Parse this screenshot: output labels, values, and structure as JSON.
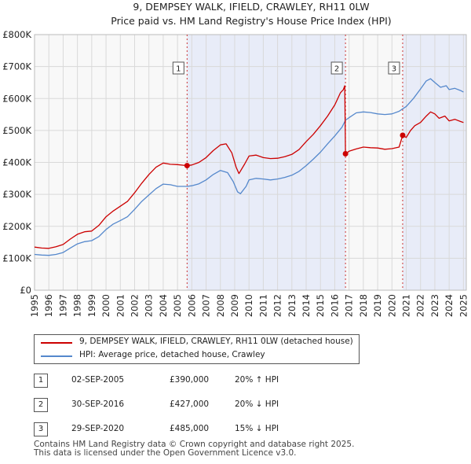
{
  "chart_data": {
    "type": "line",
    "title": "9, DEMPSEY WALK, IFIELD, CRAWLEY, RH11 0LW",
    "subtitle": "Price paid vs. HM Land Registry's House Price Index (HPI)",
    "xlim": [
      1995,
      2025.2
    ],
    "ylim": [
      0,
      800000
    ],
    "y_ticks": [
      {
        "value": 0,
        "label": "£0"
      },
      {
        "value": 100000,
        "label": "£100K"
      },
      {
        "value": 200000,
        "label": "£200K"
      },
      {
        "value": 300000,
        "label": "£300K"
      },
      {
        "value": 400000,
        "label": "£400K"
      },
      {
        "value": 500000,
        "label": "£500K"
      },
      {
        "value": 600000,
        "label": "£600K"
      },
      {
        "value": 700000,
        "label": "£700K"
      },
      {
        "value": 800000,
        "label": "£800K"
      }
    ],
    "x_ticks": [
      "1995",
      "1996",
      "1997",
      "1998",
      "1999",
      "2000",
      "2001",
      "2002",
      "2003",
      "2004",
      "2005",
      "2006",
      "2007",
      "2008",
      "2009",
      "2010",
      "2011",
      "2012",
      "2013",
      "2014",
      "2015",
      "2016",
      "2017",
      "2018",
      "2019",
      "2020",
      "2021",
      "2022",
      "2023",
      "2024",
      "2025"
    ],
    "shaded_ranges": [
      [
        2005.67,
        2016.75
      ],
      [
        2020.75,
        2025.2
      ]
    ],
    "sale_markers": [
      {
        "label": "1",
        "x": 2005.67,
        "y": 390000
      },
      {
        "label": "2",
        "x": 2016.75,
        "y": 427000
      },
      {
        "label": "3",
        "x": 2020.75,
        "y": 485000
      }
    ],
    "series": [
      {
        "name": "9, DEMPSEY WALK, IFIELD, CRAWLEY, RH11 0LW (detached house)",
        "color": "#cc0000",
        "points": [
          [
            1995,
            135000
          ],
          [
            1995.5,
            132000
          ],
          [
            1996,
            131000
          ],
          [
            1996.5,
            136000
          ],
          [
            1997,
            143000
          ],
          [
            1997.5,
            160000
          ],
          [
            1998,
            175000
          ],
          [
            1998.5,
            183000
          ],
          [
            1999,
            185000
          ],
          [
            1999.5,
            203000
          ],
          [
            2000,
            230000
          ],
          [
            2000.5,
            248000
          ],
          [
            2001,
            263000
          ],
          [
            2001.5,
            278000
          ],
          [
            2002,
            305000
          ],
          [
            2002.5,
            335000
          ],
          [
            2003,
            362000
          ],
          [
            2003.5,
            385000
          ],
          [
            2004,
            398000
          ],
          [
            2004.5,
            394000
          ],
          [
            2005,
            393000
          ],
          [
            2005.67,
            390000
          ],
          [
            2006,
            392000
          ],
          [
            2006.5,
            400000
          ],
          [
            2007,
            415000
          ],
          [
            2007.5,
            437000
          ],
          [
            2008,
            455000
          ],
          [
            2008.4,
            458000
          ],
          [
            2008.8,
            430000
          ],
          [
            2009.1,
            385000
          ],
          [
            2009.3,
            365000
          ],
          [
            2009.7,
            395000
          ],
          [
            2010,
            420000
          ],
          [
            2010.5,
            423000
          ],
          [
            2011,
            415000
          ],
          [
            2011.5,
            412000
          ],
          [
            2012,
            413000
          ],
          [
            2012.5,
            418000
          ],
          [
            2013,
            425000
          ],
          [
            2013.5,
            440000
          ],
          [
            2014,
            465000
          ],
          [
            2014.5,
            488000
          ],
          [
            2015,
            515000
          ],
          [
            2015.5,
            545000
          ],
          [
            2016,
            580000
          ],
          [
            2016.4,
            618000
          ],
          [
            2016.6,
            628000
          ],
          [
            2016.7,
            640000
          ],
          [
            2016.75,
            427000
          ],
          [
            2017,
            435000
          ],
          [
            2017.5,
            442000
          ],
          [
            2018,
            448000
          ],
          [
            2018.5,
            446000
          ],
          [
            2019,
            445000
          ],
          [
            2019.5,
            441000
          ],
          [
            2020,
            443000
          ],
          [
            2020.5,
            448000
          ],
          [
            2020.75,
            485000
          ],
          [
            2021,
            478000
          ],
          [
            2021.3,
            500000
          ],
          [
            2021.6,
            515000
          ],
          [
            2022,
            525000
          ],
          [
            2022.4,
            545000
          ],
          [
            2022.7,
            558000
          ],
          [
            2023,
            552000
          ],
          [
            2023.3,
            538000
          ],
          [
            2023.7,
            545000
          ],
          [
            2024,
            530000
          ],
          [
            2024.4,
            535000
          ],
          [
            2024.8,
            528000
          ],
          [
            2025,
            525000
          ]
        ]
      },
      {
        "name": "HPI: Average price, detached house, Crawley",
        "color": "#5588cc",
        "points": [
          [
            1995,
            112000
          ],
          [
            1995.5,
            110000
          ],
          [
            1996,
            109000
          ],
          [
            1996.5,
            112000
          ],
          [
            1997,
            118000
          ],
          [
            1997.5,
            132000
          ],
          [
            1998,
            145000
          ],
          [
            1998.5,
            152000
          ],
          [
            1999,
            155000
          ],
          [
            1999.5,
            168000
          ],
          [
            2000,
            190000
          ],
          [
            2000.5,
            207000
          ],
          [
            2001,
            218000
          ],
          [
            2001.5,
            230000
          ],
          [
            2002,
            253000
          ],
          [
            2002.5,
            278000
          ],
          [
            2003,
            298000
          ],
          [
            2003.5,
            318000
          ],
          [
            2004,
            332000
          ],
          [
            2004.5,
            330000
          ],
          [
            2005,
            325000
          ],
          [
            2005.67,
            325000
          ],
          [
            2006,
            327000
          ],
          [
            2006.5,
            333000
          ],
          [
            2007,
            345000
          ],
          [
            2007.5,
            362000
          ],
          [
            2008,
            375000
          ],
          [
            2008.5,
            368000
          ],
          [
            2008.9,
            340000
          ],
          [
            2009.2,
            308000
          ],
          [
            2009.4,
            302000
          ],
          [
            2009.8,
            325000
          ],
          [
            2010,
            345000
          ],
          [
            2010.5,
            350000
          ],
          [
            2011,
            348000
          ],
          [
            2011.5,
            345000
          ],
          [
            2012,
            348000
          ],
          [
            2012.5,
            353000
          ],
          [
            2013,
            360000
          ],
          [
            2013.5,
            372000
          ],
          [
            2014,
            390000
          ],
          [
            2014.5,
            410000
          ],
          [
            2015,
            432000
          ],
          [
            2015.5,
            458000
          ],
          [
            2016,
            483000
          ],
          [
            2016.5,
            510000
          ],
          [
            2016.75,
            532000
          ],
          [
            2017,
            540000
          ],
          [
            2017.5,
            555000
          ],
          [
            2018,
            558000
          ],
          [
            2018.5,
            556000
          ],
          [
            2019,
            552000
          ],
          [
            2019.5,
            550000
          ],
          [
            2020,
            552000
          ],
          [
            2020.5,
            560000
          ],
          [
            2020.75,
            568000
          ],
          [
            2021,
            575000
          ],
          [
            2021.5,
            600000
          ],
          [
            2022,
            630000
          ],
          [
            2022.4,
            655000
          ],
          [
            2022.7,
            662000
          ],
          [
            2023,
            650000
          ],
          [
            2023.4,
            635000
          ],
          [
            2023.8,
            640000
          ],
          [
            2024,
            628000
          ],
          [
            2024.4,
            632000
          ],
          [
            2024.8,
            625000
          ],
          [
            2025,
            620000
          ]
        ]
      }
    ]
  },
  "legend": {
    "items": [
      {
        "label": "9, DEMPSEY WALK, IFIELD, CRAWLEY, RH11 0LW (detached house)",
        "color": "#cc0000"
      },
      {
        "label": "HPI: Average price, detached house, Crawley",
        "color": "#5588cc"
      }
    ]
  },
  "sales": [
    {
      "num": "1",
      "date": "02-SEP-2005",
      "price": "£390,000",
      "hpi": "20% ↑ HPI"
    },
    {
      "num": "2",
      "date": "30-SEP-2016",
      "price": "£427,000",
      "hpi": "20% ↓ HPI"
    },
    {
      "num": "3",
      "date": "29-SEP-2020",
      "price": "£485,000",
      "hpi": "15% ↓ HPI"
    }
  ],
  "footer": {
    "line1": "Contains HM Land Registry data © Crown copyright and database right 2025.",
    "line2": "This data is licensed under the Open Government Licence v3.0."
  },
  "colors": {
    "shade": "#e8ecf8",
    "grid": "#d9d9d9",
    "vline": "#cc3333",
    "plot_bg": "#f8f8f8"
  }
}
